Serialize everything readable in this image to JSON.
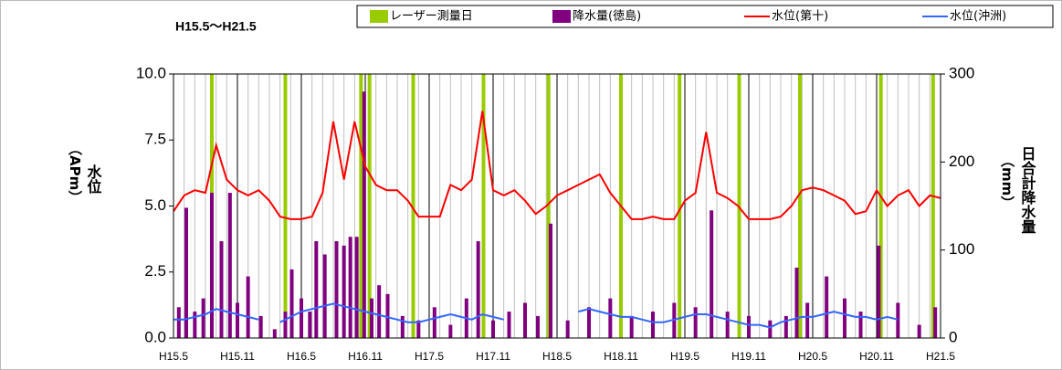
{
  "chart_data": {
    "type": "combo",
    "title": "H15.5～H21.5",
    "y_label": "水位",
    "y_label_unit": "（APm）",
    "y2_label": "日合計降水量",
    "y2_label_unit": "（mm）",
    "ylim": [
      0,
      10
    ],
    "yticks": [
      {
        "value": 0,
        "label": "0.0"
      },
      {
        "value": 2.5,
        "label": "2.5"
      },
      {
        "value": 5,
        "label": "5.0"
      },
      {
        "value": 7.5,
        "label": "7.5"
      },
      {
        "value": 10,
        "label": "10.0"
      }
    ],
    "y2lim": [
      0,
      300
    ],
    "y2ticks": [
      0,
      100,
      200,
      300
    ],
    "xlim": [
      0,
      72
    ],
    "xticks": [
      {
        "value": 0,
        "label": "H15.5"
      },
      {
        "value": 6,
        "label": "H15.11"
      },
      {
        "value": 12,
        "label": "H16.5"
      },
      {
        "value": 18,
        "label": "H16.11"
      },
      {
        "value": 24,
        "label": "H17.5"
      },
      {
        "value": 30,
        "label": "H17.11"
      },
      {
        "value": 36,
        "label": "H18.5"
      },
      {
        "value": 42,
        "label": "H18.11"
      },
      {
        "value": 48,
        "label": "H19.5"
      },
      {
        "value": 54,
        "label": "H19.11"
      },
      {
        "value": 60,
        "label": "H20.5"
      },
      {
        "value": 66,
        "label": "H20.11"
      },
      {
        "value": 72,
        "label": "H21.5"
      }
    ],
    "grid": "x",
    "x": [
      0,
      1,
      2,
      3,
      4,
      5,
      6,
      7,
      8,
      9,
      10,
      11,
      12,
      13,
      14,
      15,
      16,
      17,
      18,
      19,
      20,
      21,
      22,
      23,
      24,
      25,
      26,
      27,
      28,
      29,
      30,
      31,
      32,
      33,
      34,
      35,
      36,
      37,
      38,
      39,
      40,
      41,
      42,
      43,
      44,
      45,
      46,
      47,
      48,
      49,
      50,
      51,
      52,
      53,
      54,
      55,
      56,
      57,
      58,
      59,
      60,
      61,
      62,
      63,
      64,
      65,
      66,
      67,
      68,
      69,
      70,
      71,
      72
    ],
    "legend": "top",
    "series": [
      {
        "name": "レーザー測量日",
        "type": "vline",
        "color": "#99cc00",
        "x": [
          3.6,
          10.5,
          17.6,
          18.4,
          22.5,
          29.1,
          35.2,
          42.0,
          47.5,
          53.1,
          58.8,
          66.4,
          71.3
        ]
      },
      {
        "name": "降水量(徳島)",
        "type": "bar",
        "axis": "y2",
        "color": "#800080",
        "x": [
          0.5,
          1.2,
          2.0,
          2.8,
          3.6,
          4.5,
          5.3,
          6.0,
          7.0,
          8.2,
          9.5,
          10.5,
          11.1,
          12.0,
          12.8,
          13.4,
          14.2,
          15.3,
          16.0,
          16.6,
          17.2,
          17.9,
          18.6,
          19.3,
          20.1,
          21.5,
          23.0,
          24.5,
          26.0,
          27.5,
          28.6,
          30.0,
          31.5,
          33.0,
          34.2,
          35.4,
          37.0,
          39.0,
          41.0,
          43.0,
          45.0,
          47.0,
          49.0,
          50.5,
          52.0,
          54.0,
          56.0,
          57.5,
          58.5,
          59.5,
          61.3,
          63.0,
          64.5,
          66.2,
          68.0,
          70.0,
          71.5
        ],
        "values": [
          35,
          148,
          30,
          45,
          165,
          110,
          165,
          40,
          70,
          25,
          10,
          30,
          78,
          45,
          30,
          110,
          95,
          110,
          105,
          115,
          115,
          280,
          45,
          60,
          50,
          25,
          20,
          35,
          15,
          45,
          110,
          20,
          30,
          40,
          25,
          130,
          20,
          35,
          45,
          25,
          30,
          40,
          35,
          145,
          30,
          25,
          20,
          25,
          80,
          40,
          70,
          45,
          30,
          105,
          40,
          15,
          35
        ]
      },
      {
        "name": "水位(第十)",
        "type": "line",
        "color": "#ff0000",
        "values": [
          4.8,
          5.4,
          5.6,
          5.5,
          7.3,
          6.0,
          5.6,
          5.4,
          5.6,
          5.2,
          4.6,
          4.5,
          4.5,
          4.6,
          5.5,
          8.2,
          6.0,
          8.2,
          6.5,
          5.8,
          5.6,
          5.6,
          5.2,
          4.6,
          4.6,
          4.6,
          5.8,
          5.6,
          6.0,
          8.6,
          5.6,
          5.4,
          5.6,
          5.2,
          4.7,
          5.0,
          5.4,
          5.6,
          5.8,
          6.0,
          6.2,
          5.5,
          5.0,
          4.5,
          4.5,
          4.6,
          4.5,
          4.5,
          5.2,
          5.5,
          7.8,
          5.5,
          5.3,
          5.0,
          4.5,
          4.5,
          4.5,
          4.6,
          5.0,
          5.6,
          5.7,
          5.6,
          5.4,
          5.2,
          4.7,
          4.8,
          5.6,
          5.0,
          5.4,
          5.6,
          5.0,
          5.4,
          5.3
        ]
      },
      {
        "name": "水位(沖洲)",
        "type": "line",
        "color": "#3366ff",
        "values": [
          0.7,
          0.7,
          0.8,
          0.9,
          1.1,
          1.0,
          0.9,
          0.8,
          0.7,
          null,
          0.6,
          0.8,
          1.0,
          1.1,
          1.2,
          1.3,
          1.2,
          1.1,
          1.0,
          0.9,
          0.8,
          0.7,
          0.6,
          0.6,
          0.7,
          0.8,
          0.9,
          0.8,
          0.7,
          0.9,
          0.8,
          0.7,
          null,
          null,
          null,
          null,
          null,
          null,
          1.0,
          1.1,
          1.0,
          0.9,
          0.8,
          0.8,
          0.7,
          0.6,
          0.6,
          0.7,
          0.8,
          0.9,
          0.9,
          0.8,
          0.7,
          0.6,
          0.5,
          0.5,
          0.4,
          0.6,
          0.7,
          0.8,
          0.8,
          0.9,
          1.0,
          0.9,
          0.8,
          0.8,
          0.7,
          0.8,
          0.7,
          null,
          null,
          null,
          null
        ]
      }
    ]
  }
}
